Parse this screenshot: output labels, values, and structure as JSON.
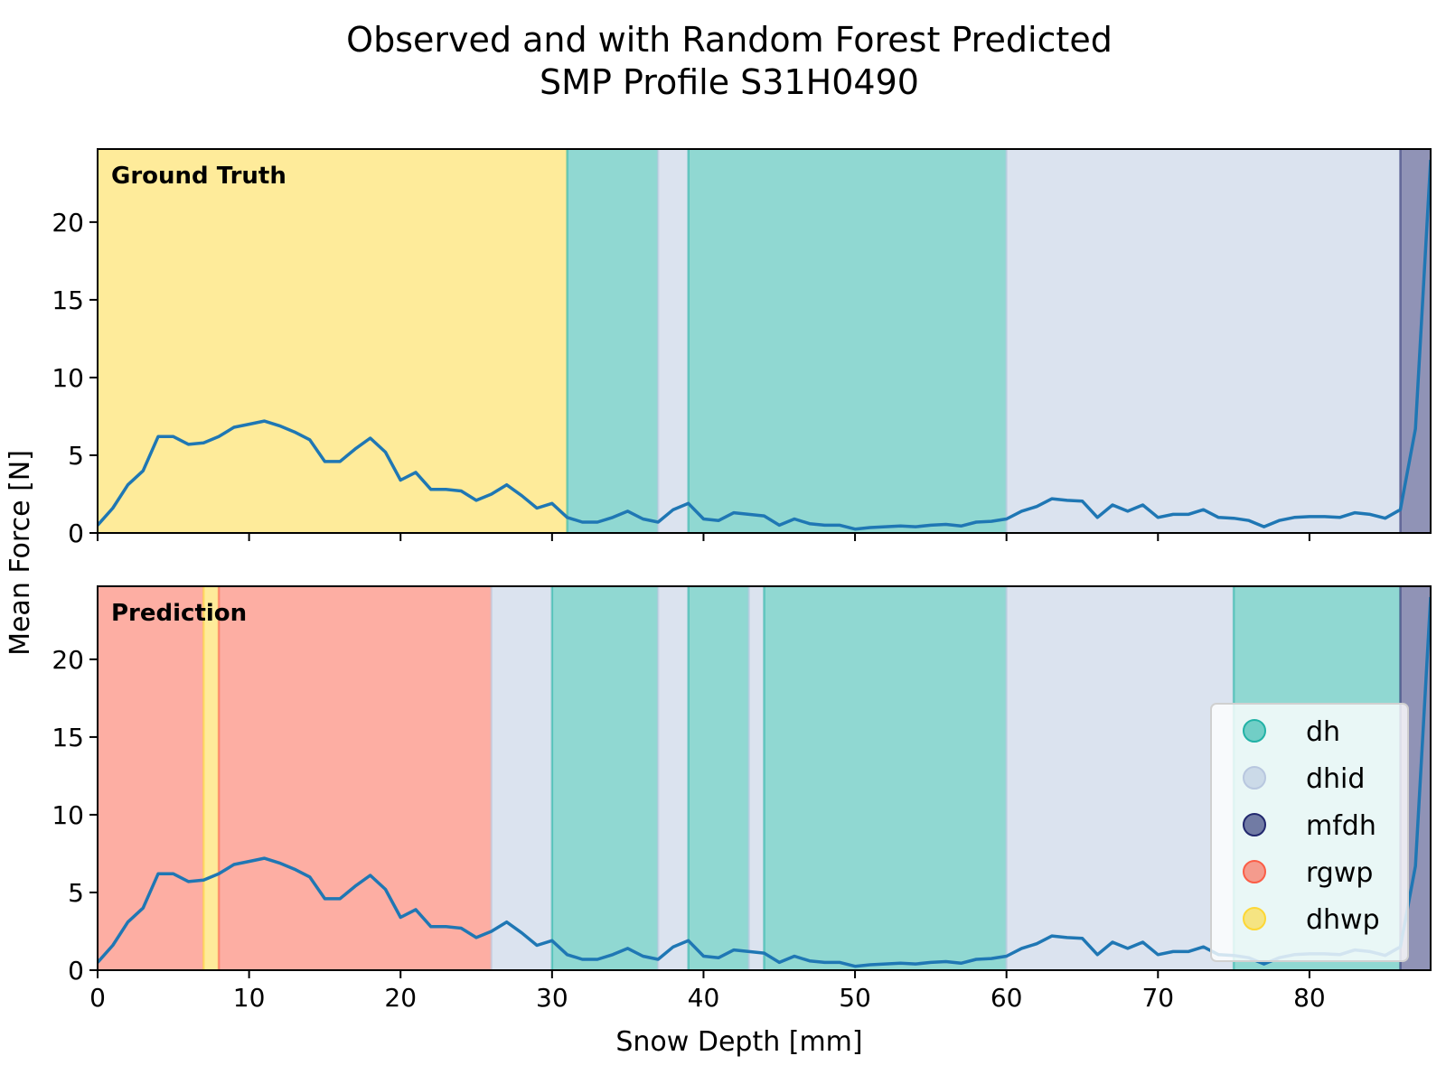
{
  "chart_data": {
    "type": "line",
    "title": [
      "Observed and with Random Forest Predicted",
      "SMP Profile S31H0490"
    ],
    "xlabel": "Snow Depth [mm]",
    "ylabel": "Mean Force [N]",
    "xlim": [
      0,
      88
    ],
    "ylim": [
      0,
      24.7
    ],
    "xticks": [
      0,
      10,
      20,
      30,
      40,
      50,
      60,
      70,
      80
    ],
    "yticks": [
      0,
      5,
      10,
      15,
      20
    ],
    "series": [
      {
        "x": [
          0,
          1,
          2,
          3,
          4,
          5,
          6,
          7,
          8,
          9,
          10,
          11,
          12,
          13,
          14,
          15,
          16,
          17,
          18,
          19,
          20,
          21,
          22,
          23,
          24,
          25,
          26,
          27,
          28,
          29,
          30,
          31,
          32,
          33,
          34,
          35,
          36,
          37,
          38,
          39,
          40,
          41,
          42,
          43,
          44,
          45,
          46,
          47,
          48,
          49,
          50,
          51,
          52,
          53,
          54,
          55,
          56,
          57,
          58,
          59,
          60,
          61,
          62,
          63,
          64,
          65,
          66,
          67,
          68,
          69,
          70,
          71,
          72,
          73,
          74,
          75,
          76,
          77,
          78,
          79,
          80,
          81,
          82,
          83,
          84,
          85,
          86,
          87,
          88
        ],
        "y": [
          0.5,
          1.6,
          3.1,
          4.0,
          6.2,
          6.2,
          5.7,
          5.8,
          6.2,
          6.8,
          7.0,
          7.2,
          6.9,
          6.5,
          6.0,
          4.6,
          4.6,
          5.4,
          6.1,
          5.2,
          3.4,
          3.9,
          2.8,
          2.8,
          2.7,
          2.1,
          2.5,
          3.1,
          2.4,
          1.6,
          1.9,
          1.0,
          0.7,
          0.7,
          1.0,
          1.4,
          0.9,
          0.7,
          1.5,
          1.9,
          0.9,
          0.8,
          1.3,
          1.2,
          1.1,
          0.5,
          0.9,
          0.6,
          0.5,
          0.5,
          0.25,
          0.35,
          0.4,
          0.45,
          0.4,
          0.5,
          0.55,
          0.45,
          0.7,
          0.75,
          0.9,
          1.4,
          1.7,
          2.2,
          2.1,
          2.05,
          1.0,
          1.8,
          1.4,
          1.8,
          1.0,
          1.2,
          1.2,
          1.5,
          1.0,
          0.95,
          0.8,
          0.4,
          0.8,
          1.0,
          1.05,
          1.05,
          1.0,
          1.3,
          1.2,
          0.95,
          1.5,
          6.7,
          24.0
        ]
      }
    ],
    "panels": [
      {
        "label": "Ground Truth",
        "segments": [
          {
            "start": 0,
            "end": 31,
            "class": "dhwp"
          },
          {
            "start": 31,
            "end": 37,
            "class": "dh"
          },
          {
            "start": 37,
            "end": 39,
            "class": "dhid"
          },
          {
            "start": 39,
            "end": 60,
            "class": "dh"
          },
          {
            "start": 60,
            "end": 86,
            "class": "dhid"
          },
          {
            "start": 86,
            "end": 88,
            "class": "mfdh"
          }
        ]
      },
      {
        "label": "Prediction",
        "segments": [
          {
            "start": 0,
            "end": 7,
            "class": "rgwp"
          },
          {
            "start": 7,
            "end": 8,
            "class": "dhwp"
          },
          {
            "start": 8,
            "end": 26,
            "class": "rgwp"
          },
          {
            "start": 26,
            "end": 30,
            "class": "dhid"
          },
          {
            "start": 30,
            "end": 37,
            "class": "dh"
          },
          {
            "start": 37,
            "end": 39,
            "class": "dhid"
          },
          {
            "start": 39,
            "end": 43,
            "class": "dh"
          },
          {
            "start": 43,
            "end": 44,
            "class": "dhid"
          },
          {
            "start": 44,
            "end": 60,
            "class": "dh"
          },
          {
            "start": 60,
            "end": 75,
            "class": "dhid"
          },
          {
            "start": 75,
            "end": 86,
            "class": "dh"
          },
          {
            "start": 86,
            "end": 88,
            "class": "mfdh"
          }
        ]
      }
    ],
    "legend": {
      "placement": "lower-right of bottom panel",
      "entries": [
        {
          "name": "dh",
          "color": "#22b2a6"
        },
        {
          "name": "dhid",
          "color": "#b8c7df"
        },
        {
          "name": "mfdh",
          "color": "#22286e"
        },
        {
          "name": "rgwp",
          "color": "#fb5e47"
        },
        {
          "name": "dhwp",
          "color": "#fdd735"
        }
      ]
    },
    "line_color": "#1f77b4",
    "grid": false
  }
}
